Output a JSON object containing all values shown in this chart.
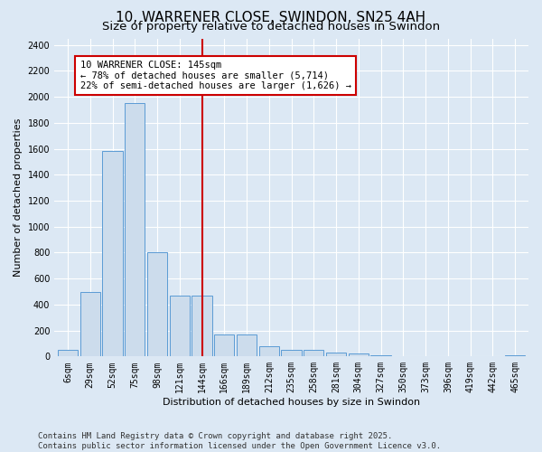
{
  "title": "10, WARRENER CLOSE, SWINDON, SN25 4AH",
  "subtitle": "Size of property relative to detached houses in Swindon",
  "xlabel": "Distribution of detached houses by size in Swindon",
  "ylabel": "Number of detached properties",
  "footer": "Contains HM Land Registry data © Crown copyright and database right 2025.\nContains public sector information licensed under the Open Government Licence v3.0.",
  "bar_labels": [
    "6sqm",
    "29sqm",
    "52sqm",
    "75sqm",
    "98sqm",
    "121sqm",
    "144sqm",
    "166sqm",
    "189sqm",
    "212sqm",
    "235sqm",
    "258sqm",
    "281sqm",
    "304sqm",
    "327sqm",
    "350sqm",
    "373sqm",
    "396sqm",
    "419sqm",
    "442sqm",
    "465sqm"
  ],
  "bar_values": [
    50,
    500,
    1580,
    1950,
    800,
    470,
    470,
    170,
    170,
    80,
    50,
    50,
    30,
    20,
    10,
    5,
    5,
    5,
    0,
    0,
    10
  ],
  "bar_color": "#ccdcec",
  "bar_edge_color": "#5b9bd5",
  "vline_index": 6.5,
  "vline_color": "#cc0000",
  "annotation_text": "10 WARRENER CLOSE: 145sqm\n← 78% of detached houses are smaller (5,714)\n22% of semi-detached houses are larger (1,626) →",
  "annotation_box_color": "#cc0000",
  "ylim": [
    0,
    2450
  ],
  "yticks": [
    0,
    200,
    400,
    600,
    800,
    1000,
    1200,
    1400,
    1600,
    1800,
    2000,
    2200,
    2400
  ],
  "background_color": "#dce8f4",
  "plot_bg_color": "#dce8f4",
  "grid_color": "#ffffff",
  "title_fontsize": 11,
  "subtitle_fontsize": 9.5,
  "label_fontsize": 8,
  "tick_fontsize": 7,
  "footer_fontsize": 6.5,
  "annotation_fontsize": 7.5
}
